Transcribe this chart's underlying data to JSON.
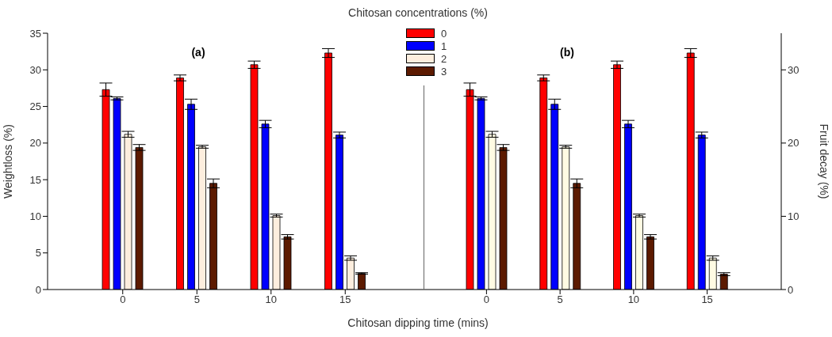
{
  "chart_data": [
    {
      "type": "bar",
      "title": "(a)",
      "xlabel": "Chitosan dipping time (mins)",
      "ylabel": "Weightloss (%)",
      "legend_title": "Chitosan concentrations (%)",
      "legend": "top",
      "categories": [
        "0",
        "5",
        "10",
        "15"
      ],
      "ylim": [
        0,
        35
      ],
      "yticks": [
        0,
        5,
        10,
        15,
        20,
        25,
        30,
        35
      ],
      "grid": false,
      "series": [
        {
          "name": "0",
          "color": "#ff0000",
          "values": [
            27.3,
            28.9,
            30.7,
            32.3
          ],
          "errors": [
            0.9,
            0.4,
            0.5,
            0.6
          ]
        },
        {
          "name": "1",
          "color": "#0000ff",
          "values": [
            26.1,
            25.3,
            22.6,
            21.1
          ],
          "errors": [
            0.2,
            0.7,
            0.5,
            0.4
          ]
        },
        {
          "name": "2",
          "color": "#fdeede",
          "values": [
            21.2,
            19.5,
            10.1,
            4.3
          ],
          "errors": [
            0.4,
            0.2,
            0.2,
            0.3
          ]
        },
        {
          "name": "3",
          "color": "#5c1a00",
          "values": [
            19.4,
            14.5,
            7.2,
            2.2
          ],
          "errors": [
            0.4,
            0.6,
            0.3,
            0.1
          ]
        }
      ]
    },
    {
      "type": "bar",
      "title": "(b)",
      "y2label": "Fruit decay (%)",
      "categories": [
        "0",
        "5",
        "10",
        "15"
      ],
      "y2lim": [
        0,
        35
      ],
      "y2ticks": [
        0,
        10,
        20,
        30
      ],
      "grid": false,
      "series": [
        {
          "color": "#ff0000",
          "axis": "y2",
          "values": [
            27.3,
            28.9,
            30.7,
            32.3
          ],
          "errors": [
            0.9,
            0.4,
            0.5,
            0.6
          ]
        },
        {
          "color": "#0000ff",
          "axis": "y2",
          "values": [
            26.1,
            25.3,
            22.6,
            21.1
          ],
          "errors": [
            0.2,
            0.7,
            0.5,
            0.4
          ]
        },
        {
          "color": "#fffbe3",
          "axis": "y2",
          "values": [
            21.2,
            19.5,
            10.1,
            4.3
          ],
          "errors": [
            0.4,
            0.2,
            0.2,
            0.3
          ]
        },
        {
          "color": "#5c1a00",
          "axis": "y2",
          "values": [
            19.4,
            14.5,
            7.2,
            2.1
          ],
          "errors": [
            0.4,
            0.6,
            0.3,
            0.2
          ]
        }
      ]
    }
  ]
}
